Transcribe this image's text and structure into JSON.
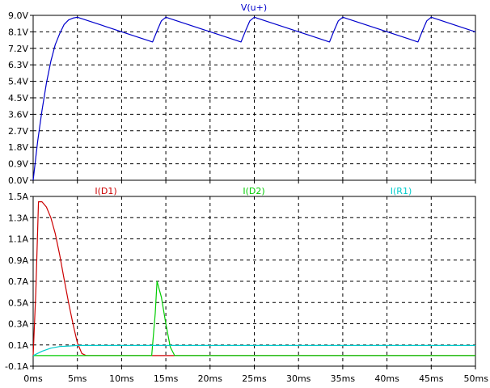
{
  "chart_data": [
    {
      "type": "line",
      "series": [
        {
          "name": "V(u+)",
          "color": "#0000cc",
          "x": [
            0.0,
            0.5,
            1.0,
            1.5,
            2.0,
            2.5,
            3.0,
            3.5,
            4.0,
            4.5,
            5.0,
            13.5,
            14.0,
            14.5,
            15.0,
            23.5,
            24.0,
            24.5,
            25.0,
            33.5,
            34.0,
            34.5,
            35.0,
            43.5,
            44.0,
            44.5,
            45.0,
            50.0
          ],
          "y": [
            0.0,
            2.1,
            3.8,
            5.3,
            6.5,
            7.4,
            8.0,
            8.5,
            8.75,
            8.85,
            8.9,
            7.55,
            8.15,
            8.7,
            8.9,
            7.55,
            8.15,
            8.7,
            8.9,
            7.55,
            8.15,
            8.7,
            8.9,
            7.55,
            8.15,
            8.7,
            8.9,
            8.1
          ]
        }
      ],
      "xlim": [
        0,
        50
      ],
      "ylim": [
        0,
        9
      ],
      "yticks": [
        "0.0V",
        "0.9V",
        "1.8V",
        "2.7V",
        "3.6V",
        "4.5V",
        "5.4V",
        "6.3V",
        "7.2V",
        "8.1V",
        "9.0V"
      ],
      "grid": true
    },
    {
      "type": "line",
      "series": [
        {
          "name": "I(D1)",
          "color": "#cc0000",
          "x": [
            0.0,
            0.3,
            0.6,
            1.0,
            1.5,
            2.0,
            2.5,
            3.0,
            3.5,
            4.0,
            4.5,
            5.0,
            5.5,
            6.0,
            50.0
          ],
          "y": [
            0.0,
            0.6,
            1.45,
            1.45,
            1.4,
            1.3,
            1.15,
            0.95,
            0.72,
            0.5,
            0.3,
            0.12,
            0.02,
            0.0,
            0.0
          ]
        },
        {
          "name": "I(D2)",
          "color": "#00cc00",
          "x": [
            0.0,
            13.4,
            13.8,
            14.0,
            14.5,
            15.0,
            15.5,
            16.0,
            50.0
          ],
          "y": [
            0.0,
            0.0,
            0.4,
            0.7,
            0.55,
            0.3,
            0.08,
            0.0,
            0.0
          ]
        },
        {
          "name": "I(R1)",
          "color": "#00cccc",
          "x": [
            0.0,
            1.0,
            2.0,
            3.0,
            4.0,
            5.0,
            50.0
          ],
          "y": [
            0.0,
            0.04,
            0.07,
            0.085,
            0.09,
            0.095,
            0.095
          ]
        }
      ],
      "xlim": [
        0,
        50
      ],
      "ylim": [
        -0.1,
        1.5
      ],
      "yticks": [
        "-0.1A",
        "0.1A",
        "0.3A",
        "0.5A",
        "0.7A",
        "0.9A",
        "1.1A",
        "1.3A",
        "1.5A"
      ],
      "xticks": [
        "0ms",
        "5ms",
        "10ms",
        "15ms",
        "20ms",
        "25ms",
        "30ms",
        "35ms",
        "40ms",
        "45ms",
        "50ms"
      ],
      "grid": true
    }
  ]
}
